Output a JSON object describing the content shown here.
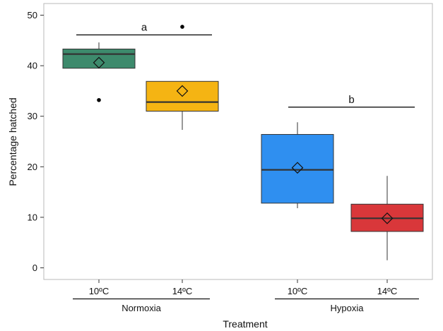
{
  "chart_data": {
    "type": "box",
    "xlabel": "Treatment",
    "ylabel": "Percentage hatched",
    "ylim": [
      0,
      50
    ],
    "yticks": [
      0,
      10,
      20,
      30,
      40,
      50
    ],
    "grid": false,
    "groups": [
      {
        "name": "Normoxia",
        "categories": [
          "10ºC",
          "14ºC"
        ]
      },
      {
        "name": "Hypoxia",
        "categories": [
          "10ºC",
          "14ºC"
        ]
      }
    ],
    "boxes": [
      {
        "group": "Normoxia",
        "category": "10ºC",
        "color": "#3d8a6c",
        "whisker_low": 39.5,
        "q1": 39.5,
        "median": 42.3,
        "q3": 43.3,
        "whisker_high": 44.6,
        "mean": 40.6,
        "outliers": [
          33.2
        ]
      },
      {
        "group": "Normoxia",
        "category": "14ºC",
        "color": "#f5b413",
        "whisker_low": 27.3,
        "q1": 31.0,
        "median": 32.8,
        "q3": 36.9,
        "whisker_high": 36.9,
        "mean": 35.0,
        "outliers": [
          47.7
        ]
      },
      {
        "group": "Hypoxia",
        "category": "10ºC",
        "color": "#2f8ff0",
        "whisker_low": 11.8,
        "q1": 12.8,
        "median": 19.4,
        "q3": 26.4,
        "whisker_high": 28.8,
        "mean": 19.8,
        "outliers": []
      },
      {
        "group": "Hypoxia",
        "category": "14ºC",
        "color": "#d9373a",
        "whisker_low": 1.5,
        "q1": 7.2,
        "median": 9.8,
        "q3": 12.6,
        "whisker_high": 18.2,
        "mean": 9.8,
        "outliers": []
      }
    ],
    "significance": [
      {
        "label": "a",
        "span": "Normoxia",
        "y": 46.1
      },
      {
        "label": "b",
        "span": "Hypoxia",
        "y": 31.8
      }
    ]
  }
}
